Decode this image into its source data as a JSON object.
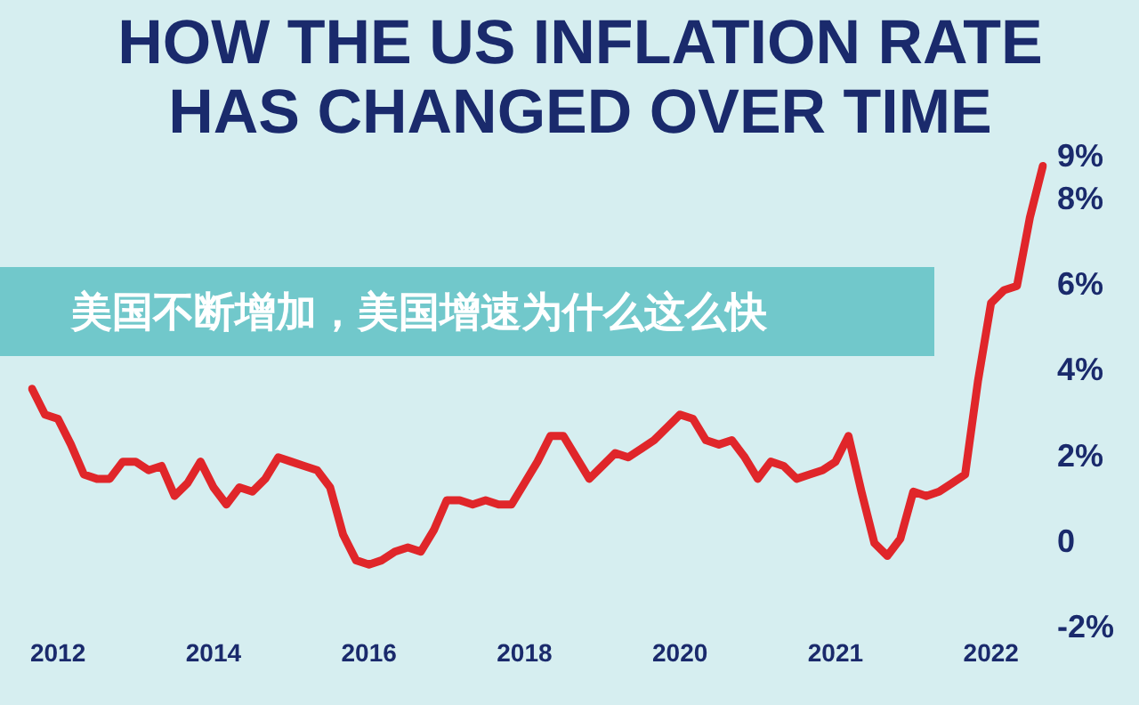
{
  "chart_data": {
    "type": "line",
    "title": "HOW THE US INFLATION RATE HAS CHANGED OVER TIME",
    "annotations": [
      "美国不断增加，美国增速为什么这么快"
    ],
    "categories": [
      null,
      null,
      "2012",
      null,
      null,
      null,
      null,
      null,
      null,
      null,
      null,
      null,
      null,
      null,
      "2014",
      null,
      null,
      null,
      null,
      null,
      null,
      null,
      null,
      null,
      null,
      null,
      "2016",
      null,
      null,
      null,
      null,
      null,
      null,
      null,
      null,
      null,
      null,
      null,
      "2018",
      null,
      null,
      null,
      null,
      null,
      null,
      null,
      null,
      null,
      null,
      null,
      "2020",
      null,
      null,
      null,
      null,
      null,
      null,
      null,
      null,
      null,
      null,
      null,
      "2021",
      null,
      null,
      null,
      null,
      null,
      null,
      null,
      null,
      null,
      null,
      null,
      "2022",
      null,
      null,
      null,
      null
    ],
    "series": [
      {
        "color": "#e0262a",
        "values": [
          3.6,
          3.0,
          2.9,
          2.3,
          1.6,
          1.5,
          1.5,
          1.9,
          1.9,
          1.7,
          1.8,
          1.1,
          1.4,
          1.9,
          1.3,
          0.9,
          1.3,
          1.2,
          1.5,
          2.0,
          1.9,
          1.8,
          1.7,
          1.3,
          0.2,
          -0.4,
          -0.5,
          -0.4,
          -0.2,
          -0.1,
          -0.2,
          0.3,
          1.0,
          1.0,
          0.9,
          1.0,
          0.9,
          0.9,
          1.4,
          1.9,
          2.5,
          2.5,
          2.0,
          1.5,
          1.8,
          2.1,
          2.0,
          2.2,
          2.4,
          2.7,
          3.0,
          2.9,
          2.4,
          2.3,
          2.4,
          2.0,
          1.5,
          1.9,
          1.8,
          1.5,
          1.6,
          1.7,
          1.9,
          2.5,
          1.2,
          0.0,
          -0.3,
          0.1,
          1.2,
          1.1,
          1.2,
          1.4,
          1.6,
          3.8,
          5.6,
          5.9,
          6.0,
          7.6,
          8.8
        ]
      }
    ],
    "ylim": [
      -2,
      9
    ],
    "yticks": [
      {
        "value": 9,
        "label": "9%"
      },
      {
        "value": 8,
        "label": "8%"
      },
      {
        "value": 6,
        "label": "6%"
      },
      {
        "value": 4,
        "label": "4%"
      },
      {
        "value": 2,
        "label": "2%"
      },
      0,
      {
        "value": -2,
        "label": "-2%"
      }
    ],
    "grid": false,
    "legend": false,
    "marker": "none",
    "line_style": "solid"
  }
}
